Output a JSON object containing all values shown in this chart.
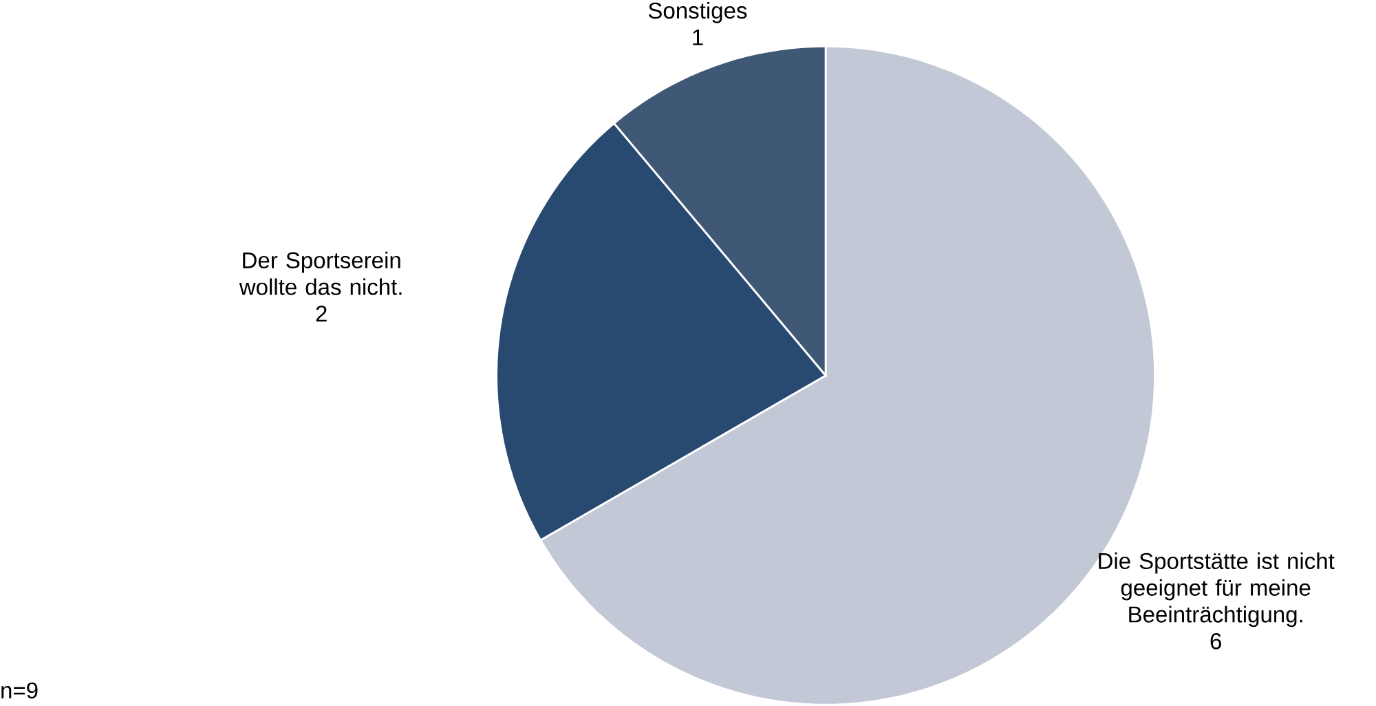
{
  "chart_data": {
    "type": "pie",
    "categories": [
      "Die Sportstätte ist nicht geeignet für meine Beeinträchtigung.",
      "Der Sportserein wollte das nicht.",
      "Sonstiges"
    ],
    "values": [
      6,
      2,
      1
    ],
    "colors": [
      "#c3c8d7",
      "#284a71",
      "#3e5875"
    ],
    "data_labels": true,
    "annotations": [
      "n=9"
    ]
  }
}
